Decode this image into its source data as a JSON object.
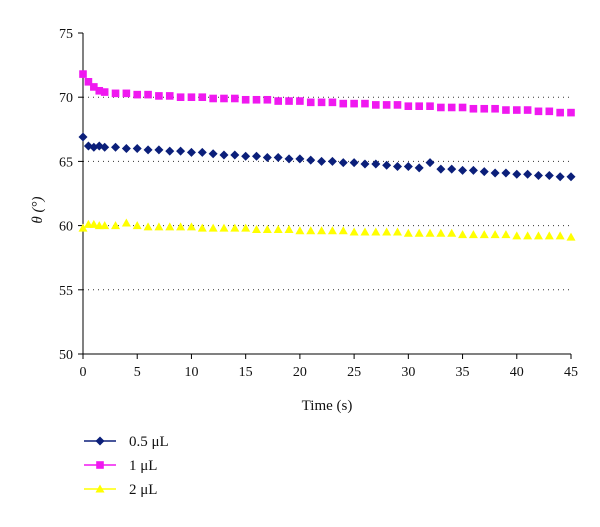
{
  "chart_data": {
    "type": "scatter",
    "xlabel": "Time (s)",
    "ylabel": "θ (°)",
    "xlim": [
      0,
      45
    ],
    "ylim": [
      50,
      75
    ],
    "xticks": [
      0,
      5,
      10,
      15,
      20,
      25,
      30,
      35,
      40,
      45
    ],
    "yticks": [
      50,
      55,
      60,
      65,
      70,
      75
    ],
    "grid": "horizontal dotted",
    "legend_position": "bottom-left",
    "series": [
      {
        "name": "0.5 μL",
        "color": "#0b1f7a",
        "marker": "diamond",
        "x": [
          0,
          0.5,
          1,
          1.5,
          2,
          3,
          4,
          5,
          6,
          7,
          8,
          9,
          10,
          11,
          12,
          13,
          14,
          15,
          16,
          17,
          18,
          19,
          20,
          21,
          22,
          23,
          24,
          25,
          26,
          27,
          28,
          29,
          30,
          31,
          32,
          33,
          34,
          35,
          36,
          37,
          38,
          39,
          40,
          41,
          42,
          43,
          44,
          45
        ],
        "values": [
          66.9,
          66.2,
          66.1,
          66.2,
          66.1,
          66.1,
          66.0,
          66.0,
          65.9,
          65.9,
          65.8,
          65.8,
          65.7,
          65.7,
          65.6,
          65.5,
          65.5,
          65.4,
          65.4,
          65.3,
          65.3,
          65.2,
          65.2,
          65.1,
          65.0,
          65.0,
          64.9,
          64.9,
          64.8,
          64.8,
          64.7,
          64.6,
          64.6,
          64.5,
          64.9,
          64.4,
          64.4,
          64.3,
          64.3,
          64.2,
          64.1,
          64.1,
          64.0,
          64.0,
          63.9,
          63.9,
          63.8,
          63.8
        ]
      },
      {
        "name": "1 μL",
        "color": "#f018f0",
        "marker": "square",
        "x": [
          0,
          0.5,
          1,
          1.5,
          2,
          3,
          4,
          5,
          6,
          7,
          8,
          9,
          10,
          11,
          12,
          13,
          14,
          15,
          16,
          17,
          18,
          19,
          20,
          21,
          22,
          23,
          24,
          25,
          26,
          27,
          28,
          29,
          30,
          31,
          32,
          33,
          34,
          35,
          36,
          37,
          38,
          39,
          40,
          41,
          42,
          43,
          44,
          45
        ],
        "values": [
          71.8,
          71.2,
          70.8,
          70.5,
          70.4,
          70.3,
          70.3,
          70.2,
          70.2,
          70.1,
          70.1,
          70.0,
          70.0,
          70.0,
          69.9,
          69.9,
          69.9,
          69.8,
          69.8,
          69.8,
          69.7,
          69.7,
          69.7,
          69.6,
          69.6,
          69.6,
          69.5,
          69.5,
          69.5,
          69.4,
          69.4,
          69.4,
          69.3,
          69.3,
          69.3,
          69.2,
          69.2,
          69.2,
          69.1,
          69.1,
          69.1,
          69.0,
          69.0,
          69.0,
          68.9,
          68.9,
          68.8,
          68.8
        ]
      },
      {
        "name": "2 μL",
        "color": "#ffff00",
        "marker": "triangle",
        "x": [
          0,
          0.5,
          1,
          1.5,
          2,
          3,
          4,
          5,
          6,
          7,
          8,
          9,
          10,
          11,
          12,
          13,
          14,
          15,
          16,
          17,
          18,
          19,
          20,
          21,
          22,
          23,
          24,
          25,
          26,
          27,
          28,
          29,
          30,
          31,
          32,
          33,
          34,
          35,
          36,
          37,
          38,
          39,
          40,
          41,
          42,
          43,
          44,
          45
        ],
        "values": [
          59.8,
          60.1,
          60.1,
          60.0,
          60.0,
          60.0,
          60.2,
          60.0,
          59.9,
          59.9,
          59.9,
          59.9,
          59.9,
          59.8,
          59.8,
          59.8,
          59.8,
          59.8,
          59.7,
          59.7,
          59.7,
          59.7,
          59.6,
          59.6,
          59.6,
          59.6,
          59.6,
          59.5,
          59.5,
          59.5,
          59.5,
          59.5,
          59.4,
          59.4,
          59.4,
          59.4,
          59.4,
          59.3,
          59.3,
          59.3,
          59.3,
          59.3,
          59.2,
          59.2,
          59.2,
          59.2,
          59.2,
          59.1
        ]
      }
    ]
  }
}
